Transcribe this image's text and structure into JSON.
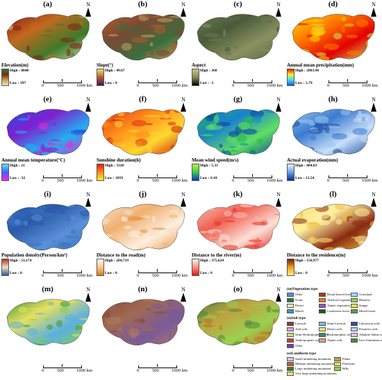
{
  "panels": [
    {
      "id": "a",
      "label": "(a)",
      "title": "Elevation(m)",
      "high": "High : 8848",
      "low": "Low : 397",
      "fill": [
        "#8b1e12",
        "#c2691f",
        "#3f7a2a",
        "#c8d8a8"
      ],
      "ramp": [
        "#e6e6c8",
        "#c9a04a",
        "#7a2a10",
        "#2e7d32"
      ]
    },
    {
      "id": "b",
      "label": "(b)",
      "title": "Slope(°)",
      "high": "High : 49.67",
      "low": "Low : 0",
      "fill": [
        "#b45a2c",
        "#7a4a34",
        "#3a6e3c",
        "#c6a060"
      ],
      "ramp": [
        "#3b1a6b",
        "#b85a2a",
        "#e8e070"
      ]
    },
    {
      "id": "c",
      "label": "(c)",
      "title": "Aspect",
      "high": "High : 360",
      "low": "Low : -1",
      "fill": [
        "#6a7a4c",
        "#4a5a3a",
        "#8a9060",
        "#5a6a44"
      ],
      "ramp": [
        "#000000",
        "#8a8a5a",
        "#d0c080"
      ]
    },
    {
      "id": "d",
      "label": "(d)",
      "title": "Annual mean precipitation(mm)",
      "high": "High : 2803.90",
      "low": "Low : 5.79",
      "fill": [
        "#ffd800",
        "#ff7a00",
        "#e40000",
        "#c8e860"
      ],
      "ramp": [
        "#2a4aff",
        "#40e0e0",
        "#f0f040",
        "#ff2000"
      ]
    },
    {
      "id": "e",
      "label": "(e)",
      "title": "Annual mean temperature(°C)",
      "high": "High : 21",
      "low": "Low : -32",
      "fill": [
        "#2050e0",
        "#8020d0",
        "#20b0f0",
        "#e030d0"
      ],
      "ramp": [
        "#ff20ff",
        "#4060ff",
        "#60e0ff"
      ]
    },
    {
      "id": "f",
      "label": "(f)",
      "title": "Sunshine duration(h)",
      "high": "High : 3320",
      "low": "Low : 1059",
      "fill": [
        "#e02a10",
        "#ff8a1a",
        "#ffd830",
        "#c81808"
      ],
      "ramp": [
        "#f8f030",
        "#ff8a1a",
        "#e02010"
      ]
    },
    {
      "id": "g",
      "label": "(g)",
      "title": "Mean wind speed(m/s)",
      "high": "High : 5.33",
      "low": "Low : 0.18",
      "fill": [
        "#20c040",
        "#1a80d0",
        "#60e060",
        "#0a40a0"
      ],
      "ramp": [
        "#1030c0",
        "#30d050",
        "#c0f040"
      ]
    },
    {
      "id": "h",
      "label": "(h)",
      "title": "Actual evaporation(mm)",
      "high": "High : 884.83",
      "low": "Low : 12.54",
      "fill": [
        "#9ec8f0",
        "#3a7ad0",
        "#c8e0f8",
        "#1a4aa0"
      ],
      "ramp": [
        "#0a2a90",
        "#6aa0e0",
        "#eaf4ff"
      ]
    },
    {
      "id": "i",
      "label": "(i)",
      "title": "Population density(Person/km²)",
      "high": "High : 53,174",
      "low": "Low : 0",
      "fill": [
        "#3a72c0",
        "#2a5aa8",
        "#5a90d8",
        "#3a72c0"
      ],
      "ramp": [
        "#2a5aa8",
        "#f0e0c0",
        "#c03020"
      ]
    },
    {
      "id": "j",
      "label": "(j)",
      "title": "Distance to the road(m)",
      "high": "High : 284,719",
      "low": "Low : 0",
      "fill": [
        "#f8e0c8",
        "#f0b070",
        "#fdf0e0",
        "#e89040"
      ],
      "ramp": [
        "#e07a10",
        "#f8c890",
        "#fff8f0"
      ]
    },
    {
      "id": "k",
      "label": "(k)",
      "title": "Distance to the river(m)",
      "high": "High : 375,624",
      "low": "Low : 0",
      "fill": [
        "#f8c0b8",
        "#f06050",
        "#fde0d8",
        "#e03020"
      ],
      "ramp": [
        "#e01a10",
        "#f89080",
        "#fff0ee"
      ]
    },
    {
      "id": "l",
      "label": "(l)",
      "title": "Distance to the residence(m)",
      "high": "High : 156,977",
      "low": "Low : 0",
      "fill": [
        "#f8e070",
        "#fff0a0",
        "#8a2a10",
        "#f0c040"
      ],
      "ramp": [
        "#f8f080",
        "#f0a020",
        "#7a1a08"
      ]
    },
    {
      "id": "m",
      "label": "(m)",
      "title": "",
      "high": "",
      "low": "",
      "fill": [
        "#3a9a3a",
        "#e8e060",
        "#5ab0e0",
        "#8ad040"
      ],
      "ramp": []
    },
    {
      "id": "n",
      "label": "(n)",
      "title": "",
      "high": "",
      "low": "",
      "fill": [
        "#8a4a3a",
        "#a06a50",
        "#7a5a9a",
        "#b07a60"
      ],
      "ramp": []
    },
    {
      "id": "o",
      "label": "(o)",
      "title": "",
      "high": "",
      "low": "",
      "fill": [
        "#4a8a3a",
        "#c0a040",
        "#9ad050",
        "#c07020"
      ],
      "ramp": []
    }
  ],
  "scale": {
    "zero": "0",
    "mid": "500",
    "end": "1000 km"
  },
  "north": "N",
  "legend": {
    "vegetation_title": "(m)Vegetation type",
    "vegetation": [
      {
        "name": "Other",
        "color": "#5a8ad8"
      },
      {
        "name": "Broad-leaved forest",
        "color": "#a03a20"
      },
      {
        "name": "Grassland",
        "color": "#a0d8f0"
      },
      {
        "name": "Scrub",
        "color": "#2a7a2a"
      },
      {
        "name": "Artificial vegetation",
        "color": "#e07a20"
      },
      {
        "name": "Meadow",
        "color": "#90d040"
      },
      {
        "name": "Desert",
        "color": "#f0e8b0"
      },
      {
        "name": "Alpine vegetation",
        "color": "#9a50c0"
      },
      {
        "name": "Steppe",
        "color": "#e8e040"
      },
      {
        "name": "Marsh",
        "color": "#2a9ad0"
      },
      {
        "name": "Coniferous forest",
        "color": "#1a5a1a"
      },
      {
        "name": "Mixed forest",
        "color": "#50a050"
      }
    ],
    "soil_title": "(n)Soil type",
    "soil": [
      {
        "name": "Luvisols",
        "color": "#8a3a3a"
      },
      {
        "name": "Semi-Luvisols",
        "color": "#70c0e0"
      },
      {
        "name": "Calcareous soils",
        "color": "#2a50a0"
      },
      {
        "name": "Arid soils",
        "color": "#e0a0d0"
      },
      {
        "name": "Desert soils",
        "color": "#f0e070"
      },
      {
        "name": "Primitive soils",
        "color": "#a0d8f0"
      },
      {
        "name": "Semi-Hydromorphic soils",
        "color": "#c0e080"
      },
      {
        "name": "Hydromorphic soils",
        "color": "#3a8a5a"
      },
      {
        "name": "Alkaline-Saline soils",
        "color": "#e8c0e0"
      },
      {
        "name": "Anthropogenic soils",
        "color": "#d03a2a"
      },
      {
        "name": "Alpine soils",
        "color": "#e0a070"
      },
      {
        "name": "Iron-Aluminum soil",
        "color": "#4a8a2a"
      },
      {
        "name": "Other",
        "color": "#7a3aa0"
      }
    ],
    "landform_title": "(o)Landform type",
    "landform": [
      {
        "name": "Small undulating mountains",
        "color": "#d0c8e8"
      },
      {
        "name": "Plains",
        "color": "#c0a050"
      },
      {
        "name": "Medium undulating mountains",
        "color": "#c06020"
      },
      {
        "name": "Platforms",
        "color": "#e8e040"
      },
      {
        "name": "Large undulating mountains",
        "color": "#3a7a2a"
      },
      {
        "name": "Hills",
        "color": "#90d040"
      },
      {
        "name": "Very large undulating mountains",
        "color": "#f0e070"
      }
    ]
  }
}
